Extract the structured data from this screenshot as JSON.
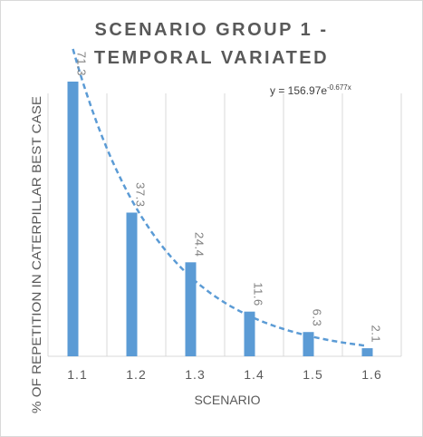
{
  "chart_data": {
    "type": "bar",
    "title_line1": "SCENARIO GROUP 1 -",
    "title_line2": "TEMPORAL VARIATED",
    "xlabel": "SCENARIO",
    "ylabel": "% OF REPETITION IN CATERPILLAR BEST CASE",
    "categories": [
      "1.1",
      "1.2",
      "1.3",
      "1.4",
      "1.5",
      "1.6"
    ],
    "values": [
      71.3,
      37.3,
      24.4,
      11.6,
      6.3,
      2.1
    ],
    "data_labels": [
      "71.3",
      "37.3",
      "24.4",
      "11.6",
      "6.3",
      "2.1"
    ],
    "ylim": [
      0,
      85
    ],
    "grid": "vertical",
    "bar_color": "#5b9bd5",
    "trendline": {
      "type": "exponential",
      "a": 156.97,
      "b": -0.677,
      "equation_prefix": "y = 156.97e",
      "equation_exponent": "-0.677x",
      "color": "#5b9bd5"
    }
  }
}
